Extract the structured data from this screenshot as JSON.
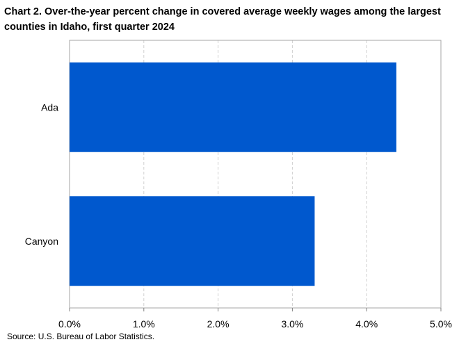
{
  "chart_data": {
    "type": "bar",
    "orientation": "horizontal",
    "title": "Chart 2. Over-the-year percent change in covered average weekly wages among the largest counties in Idaho, first quarter 2024",
    "categories": [
      "Ada",
      "Canyon"
    ],
    "values": [
      4.4,
      3.3
    ],
    "xlim": [
      0,
      5
    ],
    "xticks": [
      "0.0%",
      "1.0%",
      "2.0%",
      "3.0%",
      "4.0%",
      "5.0%"
    ],
    "grid": "vertical dashed",
    "bar_color": "#0058CE",
    "source": "Source: U.S. Bureau of Labor Statistics."
  }
}
